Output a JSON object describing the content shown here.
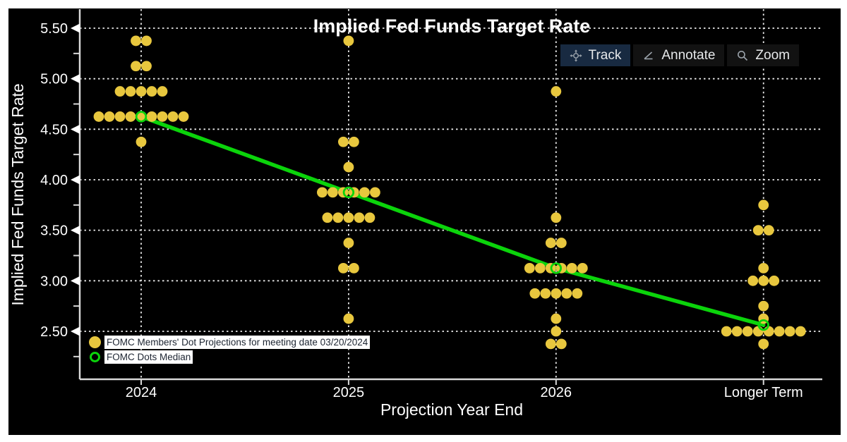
{
  "title": "Implied Fed Funds Target Rate",
  "toolbar": {
    "buttons": [
      {
        "label": "Track",
        "icon": "crosshair-icon",
        "active": true
      },
      {
        "label": "Annotate",
        "icon": "angle-icon",
        "active": false
      },
      {
        "label": "Zoom",
        "icon": "magnifier-icon",
        "active": false
      }
    ]
  },
  "legend": {
    "items": [
      {
        "label": "FOMC Members' Dot Projections for meeting date 03/20/2024",
        "marker": "filled-dot",
        "color": "#e8c73e"
      },
      {
        "label": "FOMC Dots Median",
        "marker": "open-circle",
        "color": "#0bd40b"
      }
    ]
  },
  "chart_data": {
    "type": "scatter",
    "title": "Implied Fed Funds Target Rate",
    "xlabel": "Projection Year End",
    "ylabel": "Implied Fed Funds Target Rate",
    "categories": [
      "2024",
      "2025",
      "2026",
      "Longer Term"
    ],
    "y_major_ticks": [
      5.5,
      5.0,
      4.5,
      4.0,
      3.5,
      3.0,
      2.5
    ],
    "y_major_tick_labels": [
      "5.50",
      "5.00",
      "4.50",
      "4.00",
      "3.50",
      "3.00",
      "2.50"
    ],
    "y_minor_ticks": [
      5.25,
      4.75,
      4.25,
      3.75,
      3.25,
      2.75,
      2.25
    ],
    "ylim": [
      2.03,
      5.69
    ],
    "grid": "dashed-both-axes",
    "legend_position": "bottom-left-inside",
    "series": [
      {
        "name": "FOMC Members' Dot Projections for meeting date 03/20/2024",
        "type": "dot-histogram",
        "color": "#e8c73e",
        "points": [
          {
            "category": "2024",
            "dots": [
              {
                "value": 5.375,
                "count": 2
              },
              {
                "value": 5.125,
                "count": 2
              },
              {
                "value": 4.875,
                "count": 5
              },
              {
                "value": 4.625,
                "count": 9
              },
              {
                "value": 4.375,
                "count": 1
              }
            ]
          },
          {
            "category": "2025",
            "dots": [
              {
                "value": 5.375,
                "count": 1
              },
              {
                "value": 4.375,
                "count": 2
              },
              {
                "value": 4.125,
                "count": 1
              },
              {
                "value": 3.875,
                "count": 6
              },
              {
                "value": 3.625,
                "count": 5
              },
              {
                "value": 3.375,
                "count": 1
              },
              {
                "value": 3.125,
                "count": 2
              },
              {
                "value": 2.625,
                "count": 1
              }
            ]
          },
          {
            "category": "2026",
            "dots": [
              {
                "value": 4.875,
                "count": 1
              },
              {
                "value": 3.625,
                "count": 1
              },
              {
                "value": 3.375,
                "count": 2
              },
              {
                "value": 3.125,
                "count": 6
              },
              {
                "value": 2.875,
                "count": 5
              },
              {
                "value": 2.625,
                "count": 1
              },
              {
                "value": 2.5,
                "count": 1
              },
              {
                "value": 2.375,
                "count": 2
              }
            ]
          },
          {
            "category": "Longer Term",
            "dots": [
              {
                "value": 3.75,
                "count": 1
              },
              {
                "value": 3.5,
                "count": 2
              },
              {
                "value": 3.125,
                "count": 1
              },
              {
                "value": 3.0,
                "count": 3
              },
              {
                "value": 2.75,
                "count": 1
              },
              {
                "value": 2.625,
                "count": 1
              },
              {
                "value": 2.5,
                "count": 8
              },
              {
                "value": 2.375,
                "count": 1
              }
            ]
          }
        ]
      },
      {
        "name": "FOMC Dots Median",
        "type": "line-with-open-circle-markers",
        "color": "#0bd40b",
        "values": [
          4.625,
          3.875,
          3.125,
          2.5625
        ]
      }
    ],
    "colors": {
      "page_bg": "#ffffff",
      "panel_bg": "#000000",
      "grid": "#e9e9e9",
      "axis": "#d9d9d9",
      "text": "#ffffff",
      "dots": "#e8c73e",
      "median": "#0bd40b",
      "toolbar_active_bg": "#182a41",
      "toolbar_bg": "#121212",
      "toolbar_text": "#e6e8ea",
      "legend_text": "#1c2431",
      "legend_bg": "#ffffff"
    }
  }
}
